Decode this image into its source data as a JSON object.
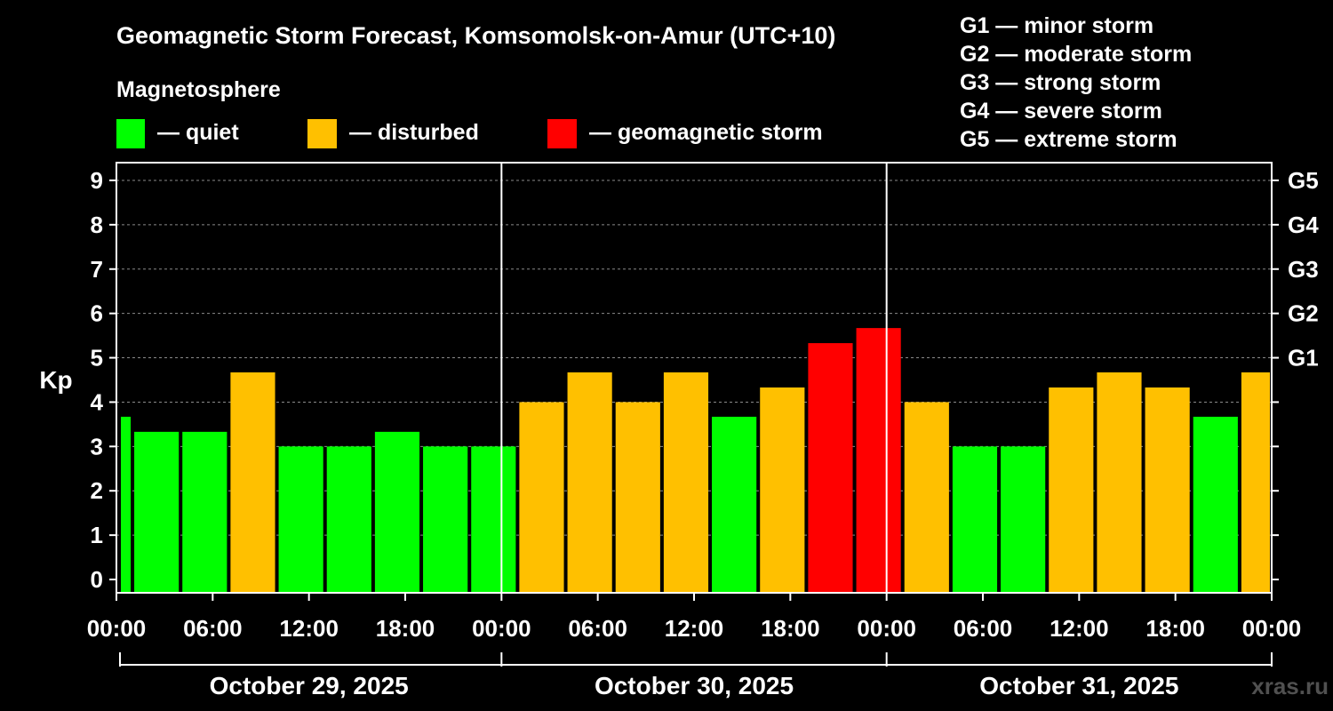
{
  "title": "Geomagnetic Storm Forecast, Komsomolsk-on-Amur (UTC+10)",
  "legend": {
    "heading": "Magnetosphere",
    "items": [
      {
        "label": "— quiet",
        "color": "#00ff00"
      },
      {
        "label": "— disturbed",
        "color": "#ffc000"
      },
      {
        "label": "— geomagnetic storm",
        "color": "#ff0000"
      }
    ]
  },
  "storm_scale": [
    "G1 — minor storm",
    "G2 — moderate storm",
    "G3 — strong storm",
    "G4 — severe storm",
    "G5 — extreme storm"
  ],
  "watermark": "xras.ru",
  "chart_data": {
    "type": "bar",
    "ylabel": "Kp",
    "ylim": [
      -0.3,
      9.4
    ],
    "y_ticks": [
      "0",
      "1",
      "2",
      "3",
      "4",
      "5",
      "6",
      "7",
      "8",
      "9"
    ],
    "right_ticks": [
      {
        "value": 5,
        "label": "G1"
      },
      {
        "value": 6,
        "label": "G2"
      },
      {
        "value": 7,
        "label": "G3"
      },
      {
        "value": 8,
        "label": "G4"
      },
      {
        "value": 9,
        "label": "G5"
      }
    ],
    "grid": "horizontal dashed",
    "x_range_hours": [
      0,
      72
    ],
    "x_ticks": [
      "00:00",
      "06:00",
      "12:00",
      "18:00",
      "00:00",
      "06:00",
      "12:00",
      "18:00",
      "00:00",
      "06:00",
      "12:00",
      "18:00",
      "00:00"
    ],
    "days": [
      "October 29, 2025",
      "October 30, 2025",
      "October 31, 2025"
    ],
    "bar_start_hours": [
      -2,
      1,
      4,
      7,
      10,
      13,
      16,
      19,
      22,
      25,
      28,
      31,
      34,
      37,
      40,
      43,
      46,
      49,
      52,
      55,
      58,
      61,
      64,
      67,
      70
    ],
    "values": [
      3.67,
      3.33,
      3.33,
      4.67,
      3.0,
      3.0,
      3.33,
      3.0,
      3.0,
      4.0,
      4.67,
      4.0,
      4.67,
      3.67,
      4.33,
      5.33,
      5.67,
      4.0,
      3.0,
      3.0,
      4.33,
      4.67,
      4.33,
      3.67,
      4.67
    ],
    "colors": {
      "quiet": "#00ff00",
      "disturbed": "#ffc000",
      "storm": "#ff0000"
    }
  }
}
